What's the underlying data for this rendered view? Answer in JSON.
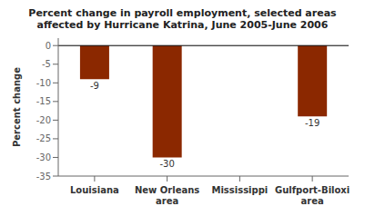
{
  "chart_data": {
    "type": "bar",
    "title": "Percent change in payroll employment, selected areas\naffected by Hurricane Katrina, June 2005-June 2006",
    "categories": [
      "Louisiana",
      "New Orleans\narea",
      "Mississippi",
      "Gulfport-Biloxi\narea"
    ],
    "values": [
      -9,
      -30,
      0,
      -19
    ],
    "color": "#8B2800",
    "ylabel": "Percent change",
    "ylim": [
      -35,
      2
    ],
    "yticks": [
      0,
      -5,
      -10,
      -15,
      -20,
      -25,
      -30,
      -35
    ],
    "data_labels": true,
    "grid": false
  }
}
